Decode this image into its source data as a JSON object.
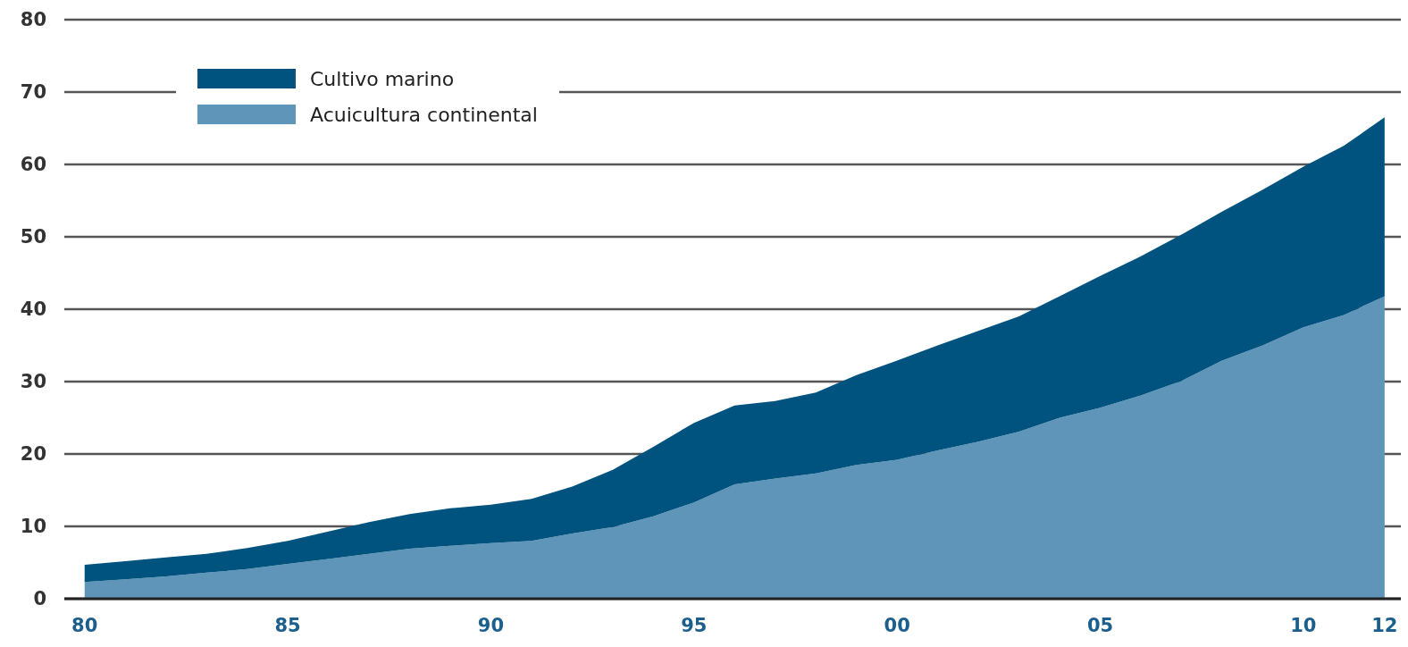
{
  "chart_data": {
    "type": "area",
    "stacked": true,
    "x": [
      1980,
      1981,
      1982,
      1983,
      1984,
      1985,
      1986,
      1987,
      1988,
      1989,
      1990,
      1991,
      1992,
      1993,
      1994,
      1995,
      1996,
      1997,
      1998,
      1999,
      2000,
      2001,
      2002,
      2003,
      2004,
      2005,
      2006,
      2007,
      2008,
      2009,
      2010,
      2011,
      2012
    ],
    "series": [
      {
        "name": "Acuicultura continental",
        "color": "#5e95b8",
        "values": [
          2.3,
          2.7,
          3.1,
          3.6,
          4.1,
          4.8,
          5.5,
          6.2,
          6.9,
          7.3,
          7.7,
          8.0,
          9.0,
          9.9,
          11.4,
          13.3,
          15.8,
          16.6,
          17.3,
          18.5,
          19.2,
          20.5,
          21.7,
          23.1,
          25.0,
          26.4,
          28.1,
          30.1,
          32.9,
          35.0,
          37.5,
          39.2,
          41.8
        ]
      },
      {
        "name": "Cultivo marino",
        "color": "#00537f",
        "values": [
          2.4,
          2.5,
          2.6,
          2.6,
          2.9,
          3.2,
          3.8,
          4.4,
          4.8,
          5.2,
          5.3,
          5.8,
          6.5,
          7.9,
          9.6,
          11.0,
          10.9,
          10.7,
          11.2,
          12.4,
          13.7,
          14.5,
          15.3,
          15.9,
          16.8,
          18.2,
          19.2,
          20.2,
          20.6,
          21.5,
          22.2,
          23.4,
          24.7
        ]
      }
    ],
    "xlim": [
      1979.5,
      2012.4
    ],
    "xticks": [
      {
        "value": 1980,
        "label": "80"
      },
      {
        "value": 1985,
        "label": "85"
      },
      {
        "value": 1990,
        "label": "90"
      },
      {
        "value": 1995,
        "label": "95"
      },
      {
        "value": 2000,
        "label": "00"
      },
      {
        "value": 2005,
        "label": "05"
      },
      {
        "value": 2010,
        "label": "10"
      },
      {
        "value": 2012,
        "label": "12"
      }
    ],
    "ylim": [
      0,
      80
    ],
    "yticks": [
      0,
      10,
      20,
      30,
      40,
      50,
      60,
      70,
      80
    ],
    "grid": "y",
    "legend": "top left"
  }
}
